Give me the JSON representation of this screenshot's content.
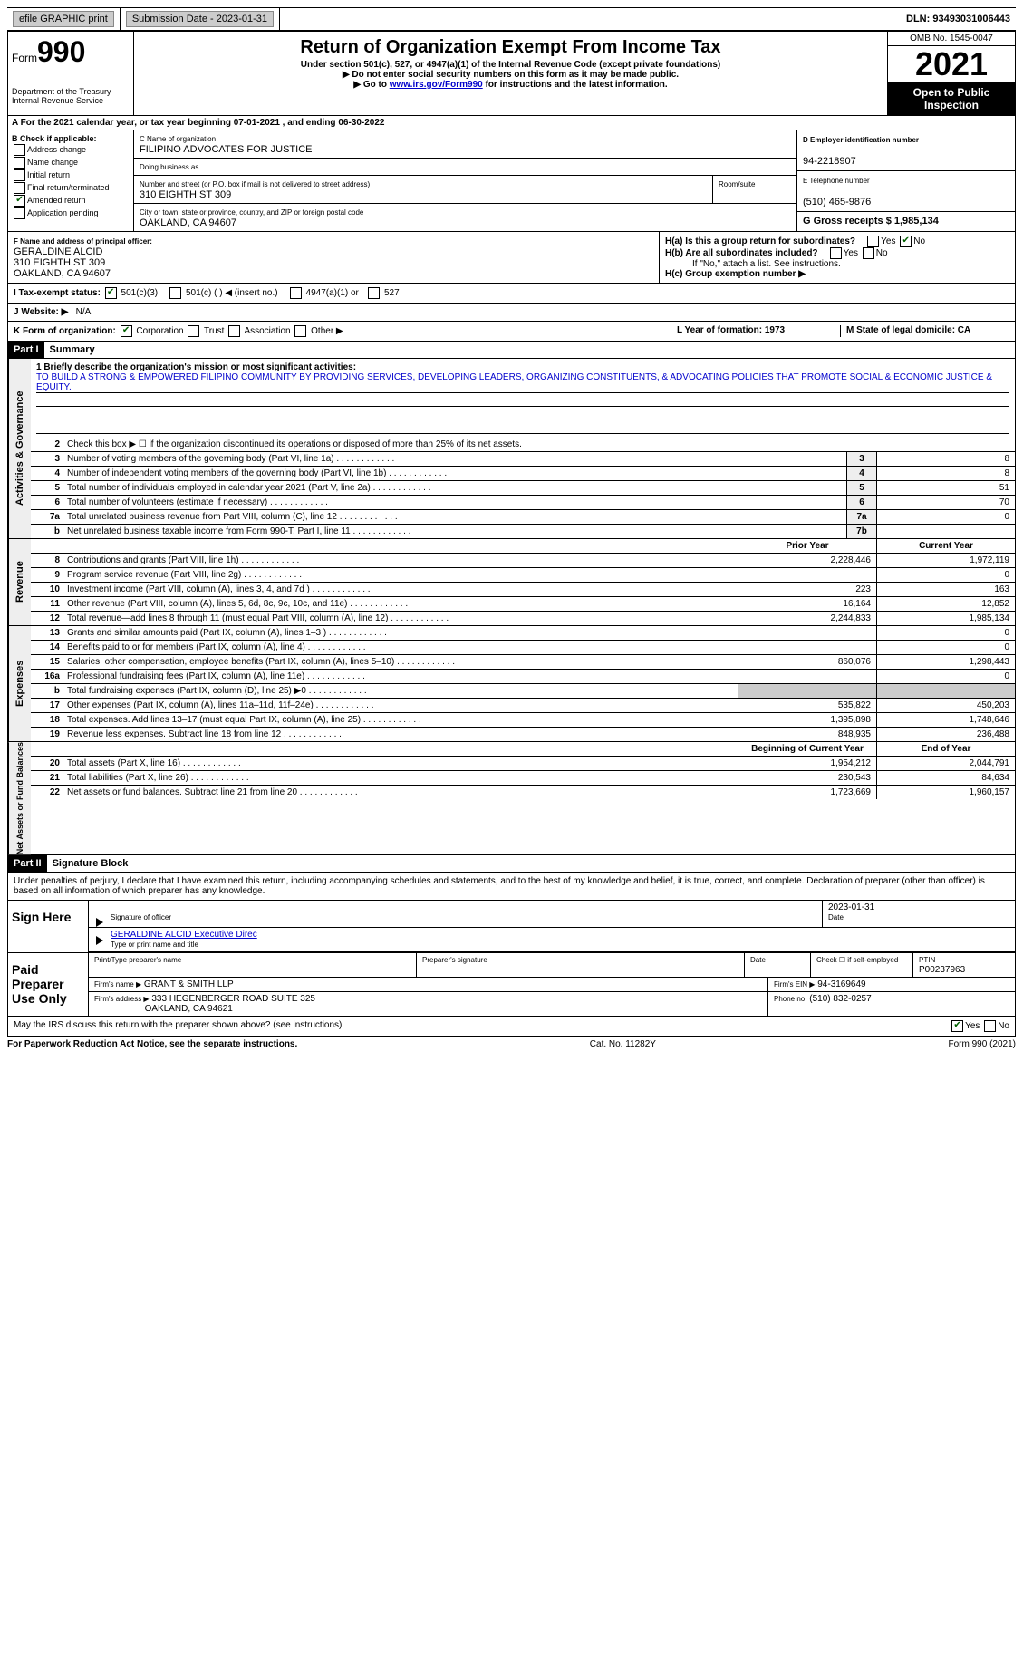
{
  "topbar": {
    "efile": "efile GRAPHIC print",
    "submission_label": "Submission Date - 2023-01-31",
    "dln_label": "DLN: 93493031006443"
  },
  "header": {
    "form_label": "Form",
    "form_number": "990",
    "dept": "Department of the Treasury\nInternal Revenue Service",
    "title": "Return of Organization Exempt From Income Tax",
    "subtitle": "Under section 501(c), 527, or 4947(a)(1) of the Internal Revenue Code (except private foundations)",
    "note1": "▶ Do not enter social security numbers on this form as it may be made public.",
    "note2_pre": "▶ Go to ",
    "note2_link": "www.irs.gov/Form990",
    "note2_post": " for instructions and the latest information.",
    "omb": "OMB No. 1545-0047",
    "year": "2021",
    "open": "Open to Public Inspection"
  },
  "rowA": "A For the 2021 calendar year, or tax year beginning 07-01-2021   , and ending 06-30-2022",
  "boxB": {
    "label": "B Check if applicable:",
    "opts": [
      "Address change",
      "Name change",
      "Initial return",
      "Final return/terminated",
      "Amended return",
      "Application pending"
    ],
    "checked_idx": 4
  },
  "boxC": {
    "name_label": "C Name of organization",
    "name": "FILIPINO ADVOCATES FOR JUSTICE",
    "dba_label": "Doing business as",
    "addr_label": "Number and street (or P.O. box if mail is not delivered to street address)",
    "room_label": "Room/suite",
    "addr": "310 EIGHTH ST 309",
    "city_label": "City or town, state or province, country, and ZIP or foreign postal code",
    "city": "OAKLAND, CA  94607"
  },
  "boxD": {
    "label": "D Employer identification number",
    "val": "94-2218907"
  },
  "boxE": {
    "label": "E Telephone number",
    "val": "(510) 465-9876"
  },
  "boxG": {
    "label": "G Gross receipts $ 1,985,134"
  },
  "boxF": {
    "label": "F Name and address of principal officer:",
    "name": "GERALDINE ALCID",
    "addr1": "310 EIGHTH ST 309",
    "addr2": "OAKLAND, CA  94607"
  },
  "boxH": {
    "ha": "H(a)  Is this a group return for subordinates?",
    "hb": "H(b)  Are all subordinates included?",
    "hnote": "If \"No,\" attach a list. See instructions.",
    "hc": "H(c)  Group exemption number ▶",
    "yes": "Yes",
    "no": "No"
  },
  "rowI": {
    "label": "I  Tax-exempt status:",
    "opts": [
      "501(c)(3)",
      "501(c) (  ) ◀ (insert no.)",
      "4947(a)(1) or",
      "527"
    ]
  },
  "rowJ": {
    "label": "J  Website: ▶",
    "val": "N/A"
  },
  "rowK": {
    "label": "K Form of organization:",
    "opts": [
      "Corporation",
      "Trust",
      "Association",
      "Other ▶"
    ],
    "L": "L Year of formation: 1973",
    "M": "M State of legal domicile: CA"
  },
  "part1": {
    "hdr": "Part I",
    "title": "Summary"
  },
  "mission": {
    "q": "1  Briefly describe the organization's mission or most significant activities:",
    "text": "TO BUILD A STRONG & EMPOWERED FILIPINO COMMUNITY BY PROVIDING SERVICES, DEVELOPING LEADERS, ORGANIZING CONSTITUENTS, & ADVOCATING POLICIES THAT PROMOTE SOCIAL & ECONOMIC JUSTICE & EQUITY."
  },
  "line2": "Check this box ▶ ☐ if the organization discontinued its operations or disposed of more than 25% of its net assets.",
  "sections": {
    "gov_label": "Activities & Governance",
    "rev_label": "Revenue",
    "exp_label": "Expenses",
    "net_label": "Net Assets or Fund Balances"
  },
  "gov_lines": [
    {
      "n": "3",
      "d": "Number of voting members of the governing body (Part VI, line 1a)",
      "box": "3",
      "v": "8"
    },
    {
      "n": "4",
      "d": "Number of independent voting members of the governing body (Part VI, line 1b)",
      "box": "4",
      "v": "8"
    },
    {
      "n": "5",
      "d": "Total number of individuals employed in calendar year 2021 (Part V, line 2a)",
      "box": "5",
      "v": "51"
    },
    {
      "n": "6",
      "d": "Total number of volunteers (estimate if necessary)",
      "box": "6",
      "v": "70"
    },
    {
      "n": "7a",
      "d": "Total unrelated business revenue from Part VIII, column (C), line 12",
      "box": "7a",
      "v": "0"
    },
    {
      "n": "b",
      "d": "Net unrelated business taxable income from Form 990-T, Part I, line 11",
      "box": "7b",
      "v": ""
    }
  ],
  "col_hdrs": {
    "prior": "Prior Year",
    "current": "Current Year",
    "begin": "Beginning of Current Year",
    "end": "End of Year"
  },
  "rev_lines": [
    {
      "n": "8",
      "d": "Contributions and grants (Part VIII, line 1h)",
      "p": "2,228,446",
      "c": "1,972,119"
    },
    {
      "n": "9",
      "d": "Program service revenue (Part VIII, line 2g)",
      "p": "",
      "c": "0"
    },
    {
      "n": "10",
      "d": "Investment income (Part VIII, column (A), lines 3, 4, and 7d )",
      "p": "223",
      "c": "163"
    },
    {
      "n": "11",
      "d": "Other revenue (Part VIII, column (A), lines 5, 6d, 8c, 9c, 10c, and 11e)",
      "p": "16,164",
      "c": "12,852"
    },
    {
      "n": "12",
      "d": "Total revenue—add lines 8 through 11 (must equal Part VIII, column (A), line 12)",
      "p": "2,244,833",
      "c": "1,985,134"
    }
  ],
  "exp_lines": [
    {
      "n": "13",
      "d": "Grants and similar amounts paid (Part IX, column (A), lines 1–3 )",
      "p": "",
      "c": "0"
    },
    {
      "n": "14",
      "d": "Benefits paid to or for members (Part IX, column (A), line 4)",
      "p": "",
      "c": "0"
    },
    {
      "n": "15",
      "d": "Salaries, other compensation, employee benefits (Part IX, column (A), lines 5–10)",
      "p": "860,076",
      "c": "1,298,443"
    },
    {
      "n": "16a",
      "d": "Professional fundraising fees (Part IX, column (A), line 11e)",
      "p": "",
      "c": "0"
    },
    {
      "n": "b",
      "d": "Total fundraising expenses (Part IX, column (D), line 25) ▶0",
      "p": "GRAY",
      "c": "GRAY"
    },
    {
      "n": "17",
      "d": "Other expenses (Part IX, column (A), lines 11a–11d, 11f–24e)",
      "p": "535,822",
      "c": "450,203"
    },
    {
      "n": "18",
      "d": "Total expenses. Add lines 13–17 (must equal Part IX, column (A), line 25)",
      "p": "1,395,898",
      "c": "1,748,646"
    },
    {
      "n": "19",
      "d": "Revenue less expenses. Subtract line 18 from line 12",
      "p": "848,935",
      "c": "236,488"
    }
  ],
  "net_lines": [
    {
      "n": "20",
      "d": "Total assets (Part X, line 16)",
      "p": "1,954,212",
      "c": "2,044,791"
    },
    {
      "n": "21",
      "d": "Total liabilities (Part X, line 26)",
      "p": "230,543",
      "c": "84,634"
    },
    {
      "n": "22",
      "d": "Net assets or fund balances. Subtract line 21 from line 20",
      "p": "1,723,669",
      "c": "1,960,157"
    }
  ],
  "part2": {
    "hdr": "Part II",
    "title": "Signature Block"
  },
  "penalties": "Under penalties of perjury, I declare that I have examined this return, including accompanying schedules and statements, and to the best of my knowledge and belief, it is true, correct, and complete. Declaration of preparer (other than officer) is based on all information of which preparer has any knowledge.",
  "sign": {
    "here": "Sign Here",
    "sig_officer": "Signature of officer",
    "date": "Date",
    "date_val": "2023-01-31",
    "name": "GERALDINE ALCID  Executive Direc",
    "name_label": "Type or print name and title"
  },
  "preparer": {
    "label": "Paid Preparer Use Only",
    "print_label": "Print/Type preparer's name",
    "sig_label": "Preparer's signature",
    "date_label": "Date",
    "check_label": "Check ☐ if self-employed",
    "ptin_label": "PTIN",
    "ptin": "P00237963",
    "firm_name_label": "Firm's name   ▶",
    "firm_name": "GRANT & SMITH LLP",
    "firm_ein_label": "Firm's EIN ▶",
    "firm_ein": "94-3169649",
    "firm_addr_label": "Firm's address ▶",
    "firm_addr": "333 HEGENBERGER ROAD SUITE 325",
    "firm_city": "OAKLAND, CA  94621",
    "phone_label": "Phone no.",
    "phone": "(510) 832-0257"
  },
  "discuss": "May the IRS discuss this return with the preparer shown above? (see instructions)",
  "footer": {
    "left": "For Paperwork Reduction Act Notice, see the separate instructions.",
    "mid": "Cat. No. 11282Y",
    "right": "Form 990 (2021)"
  }
}
